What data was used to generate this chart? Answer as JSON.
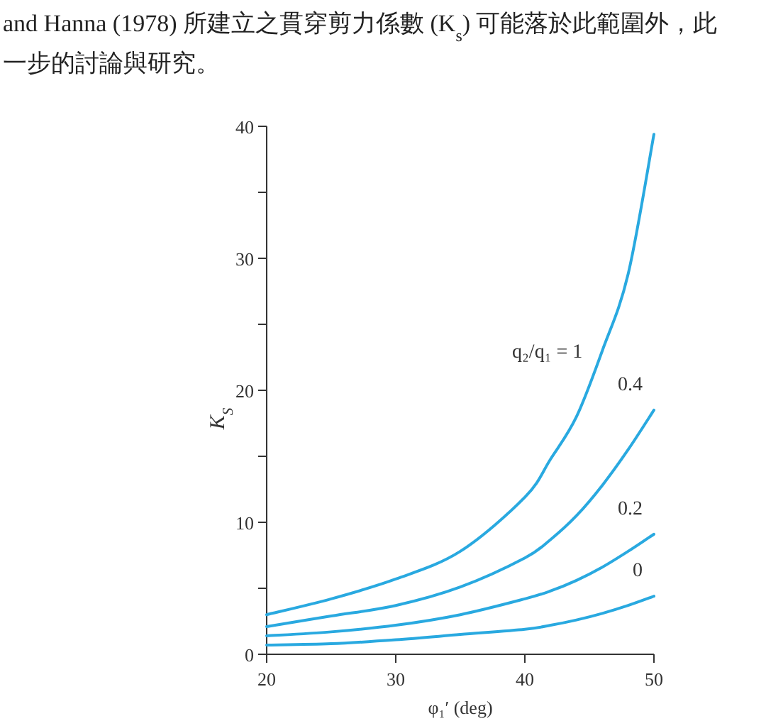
{
  "chart_data": {
    "type": "line",
    "annotations": [
      "and Hanna (1978) 所建立之貫穿剪力係數 (K$_{s}$) 可能落於此範圍外，此",
      "一步的討論與研究。"
    ],
    "xlabel": "φ₁′ (deg)",
    "ylabel": "K$_{S}$",
    "x": [
      20,
      25,
      30,
      35,
      40,
      42,
      44,
      46,
      48,
      50
    ],
    "series": [
      {
        "name": "q₂/q₁ = 1",
        "color": "#29a9e0",
        "values": [
          3.0,
          4.2,
          5.7,
          7.8,
          11.9,
          14.8,
          18.0,
          23.0,
          28.8,
          39.4
        ]
      },
      {
        "name": "0.4",
        "color": "#29a9e0",
        "values": [
          2.1,
          2.9,
          3.7,
          5.1,
          7.3,
          8.7,
          10.5,
          12.8,
          15.5,
          18.5
        ]
      },
      {
        "name": "0.2",
        "color": "#29a9e0",
        "values": [
          1.4,
          1.7,
          2.2,
          3.0,
          4.2,
          4.8,
          5.6,
          6.6,
          7.8,
          9.1
        ]
      },
      {
        "name": "0",
        "color": "#29a9e0",
        "values": [
          0.7,
          0.8,
          1.1,
          1.5,
          1.9,
          2.2,
          2.6,
          3.1,
          3.7,
          4.4
        ]
      }
    ],
    "xlim": [
      20,
      50
    ],
    "ylim": [
      0,
      40
    ],
    "xticks": [
      20,
      30,
      40,
      50
    ],
    "yticks": [
      0,
      {
        "value": 5,
        "label": null
      },
      10,
      {
        "value": 15,
        "label": null
      },
      20,
      {
        "value": 25,
        "label": null
      },
      30,
      {
        "value": 35,
        "label": null
      },
      40
    ]
  }
}
